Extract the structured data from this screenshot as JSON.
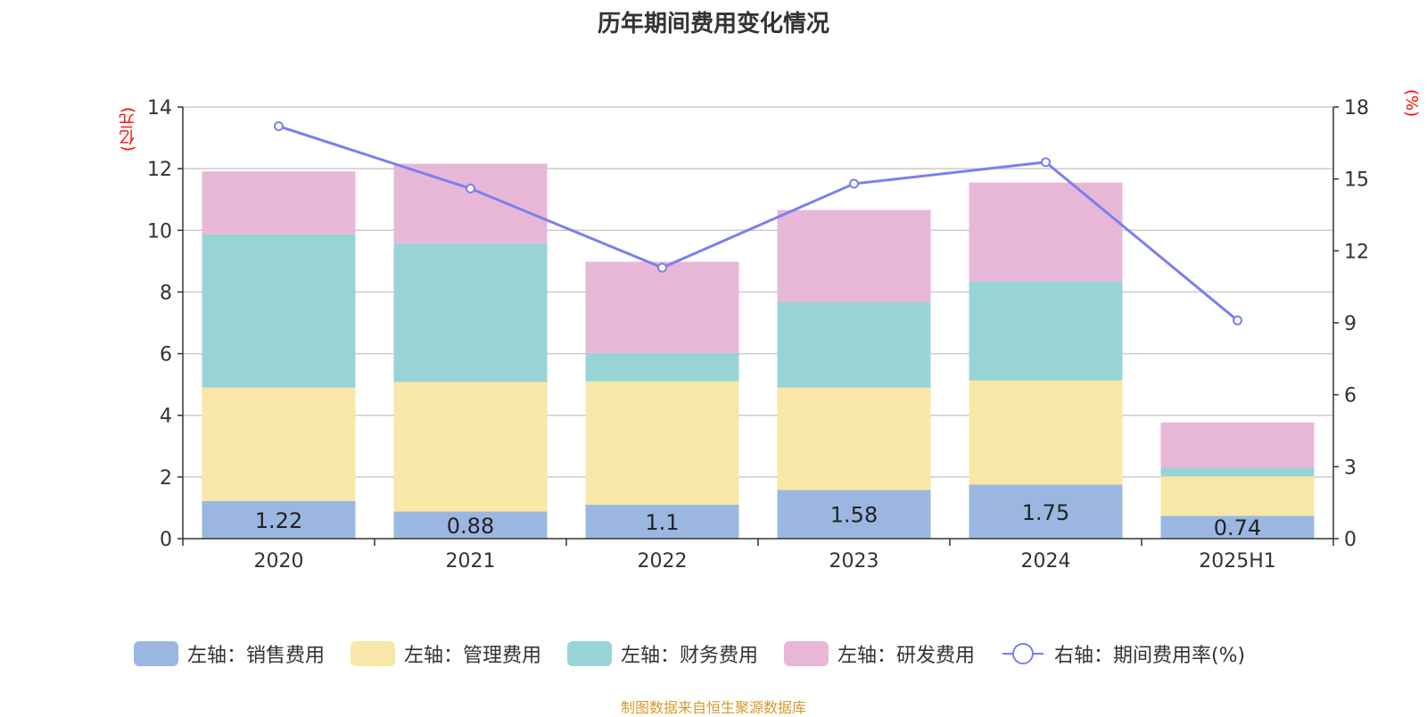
{
  "chart_data": {
    "type": "bar",
    "title": "历年期间费用变化情况",
    "left_unit": "(亿元)",
    "right_unit": "(%)",
    "categories": [
      "2020",
      "2021",
      "2022",
      "2023",
      "2024",
      "2025H1"
    ],
    "series": [
      {
        "name": "左轴：销售费用",
        "axis": "left",
        "color": "#9bb7e1",
        "values": [
          1.22,
          0.88,
          1.1,
          1.58,
          1.75,
          0.74
        ]
      },
      {
        "name": "左轴：管理费用",
        "axis": "left",
        "color": "#f8e7a6",
        "values": [
          3.68,
          4.2,
          4.0,
          3.32,
          3.38,
          1.28
        ]
      },
      {
        "name": "左轴：财务费用",
        "axis": "left",
        "color": "#98d4d5",
        "values": [
          4.97,
          4.5,
          0.92,
          2.78,
          3.22,
          0.28
        ]
      },
      {
        "name": "左轴：研发费用",
        "axis": "left",
        "color": "#e8b7d8",
        "values": [
          2.04,
          2.58,
          2.96,
          2.98,
          3.2,
          1.47
        ]
      },
      {
        "name": "右轴：期间费用率(%)",
        "axis": "right",
        "type": "line",
        "color": "#7b7ff0",
        "values": [
          17.2,
          14.6,
          11.3,
          14.8,
          15.7,
          9.1
        ]
      }
    ],
    "data_labels_series": "左轴：销售费用",
    "y_left": {
      "min": 0,
      "max": 14,
      "ticks": [
        0,
        2,
        4,
        6,
        8,
        10,
        12,
        14
      ]
    },
    "y_right": {
      "min": 0,
      "max": 18,
      "ticks": [
        0,
        3,
        6,
        9,
        12,
        15,
        18
      ]
    },
    "grid": true,
    "legend_position": "bottom"
  },
  "footer": {
    "source": "制图数据来自恒生聚源数据库"
  }
}
